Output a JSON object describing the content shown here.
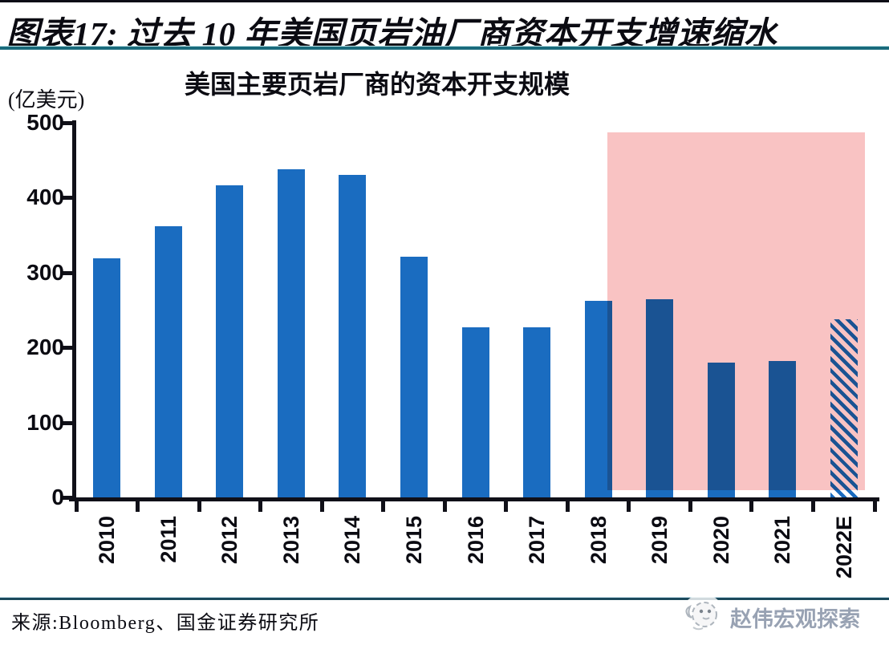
{
  "header": {
    "title": "图表17: 过去 10 年美国页岩油厂商资本开支增速缩水",
    "rule_color": "#1a6b7c"
  },
  "chart_data": {
    "type": "bar",
    "title": "美国主要页岩厂商的资本开支规模",
    "unit_label": "(亿美元)",
    "xlabel": "",
    "ylabel": "亿美元",
    "categories": [
      "2010",
      "2011",
      "2012",
      "2013",
      "2014",
      "2015",
      "2016",
      "2017",
      "2018",
      "2019",
      "2020",
      "2021",
      "2022E"
    ],
    "values": [
      319,
      362,
      417,
      438,
      430,
      321,
      227,
      227,
      262,
      264,
      180,
      182,
      238
    ],
    "ylim": [
      0,
      500
    ],
    "yticks": [
      0,
      100,
      200,
      300,
      400,
      500
    ],
    "grid": false,
    "legend": false,
    "bar_color": "#1a6cc0",
    "hatched_category": "2022E",
    "highlight": {
      "description": "translucent red shaded region over 2018-2022E",
      "color": "#f9c3c3",
      "start_category": "2018",
      "end_category": "2022E",
      "value_bottom": 10,
      "value_top": 487
    }
  },
  "footer": {
    "source": "来源:Bloomberg、国金证券研究所",
    "watermark": "赵伟宏观探索"
  }
}
